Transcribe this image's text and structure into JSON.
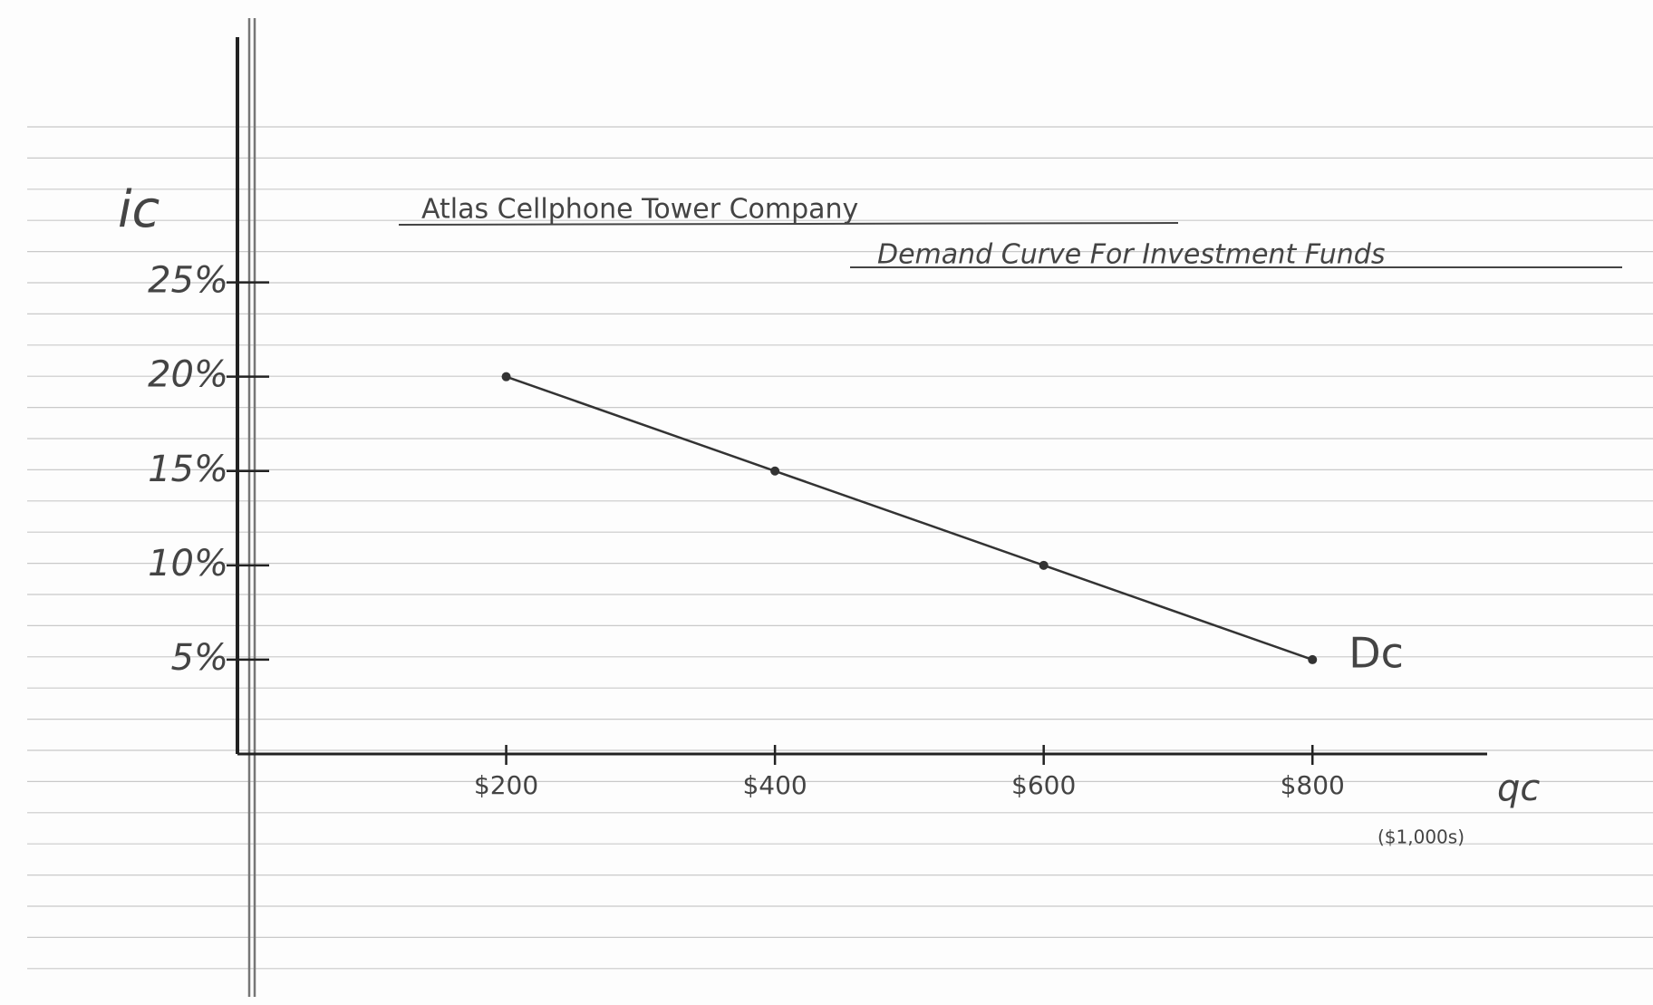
{
  "chart_data": {
    "type": "line",
    "title": "Atlas Cellphone Tower Company",
    "subtitle": "Demand Curve For Investment Funds",
    "ylabel": "ic",
    "xlabel": "qc",
    "xlabel_note": "($1,000s)",
    "x": [
      200,
      400,
      600,
      800
    ],
    "series": [
      {
        "name": "Dc",
        "color": "#333333",
        "values": [
          20,
          15,
          10,
          5
        ]
      }
    ],
    "xlim": [
      0,
      930
    ],
    "ylim": [
      0,
      38
    ],
    "xticks": [
      {
        "value": 200,
        "label": "$200"
      },
      {
        "value": 400,
        "label": "$400"
      },
      {
        "value": 600,
        "label": "$600"
      },
      {
        "value": 800,
        "label": "$800"
      }
    ],
    "yticks": [
      {
        "value": 5,
        "label": "5%"
      },
      {
        "value": 10,
        "label": "10%"
      },
      {
        "value": 15,
        "label": "15%"
      },
      {
        "value": 20,
        "label": "20%"
      },
      {
        "value": 25,
        "label": "25%"
      }
    ],
    "grid": false
  }
}
